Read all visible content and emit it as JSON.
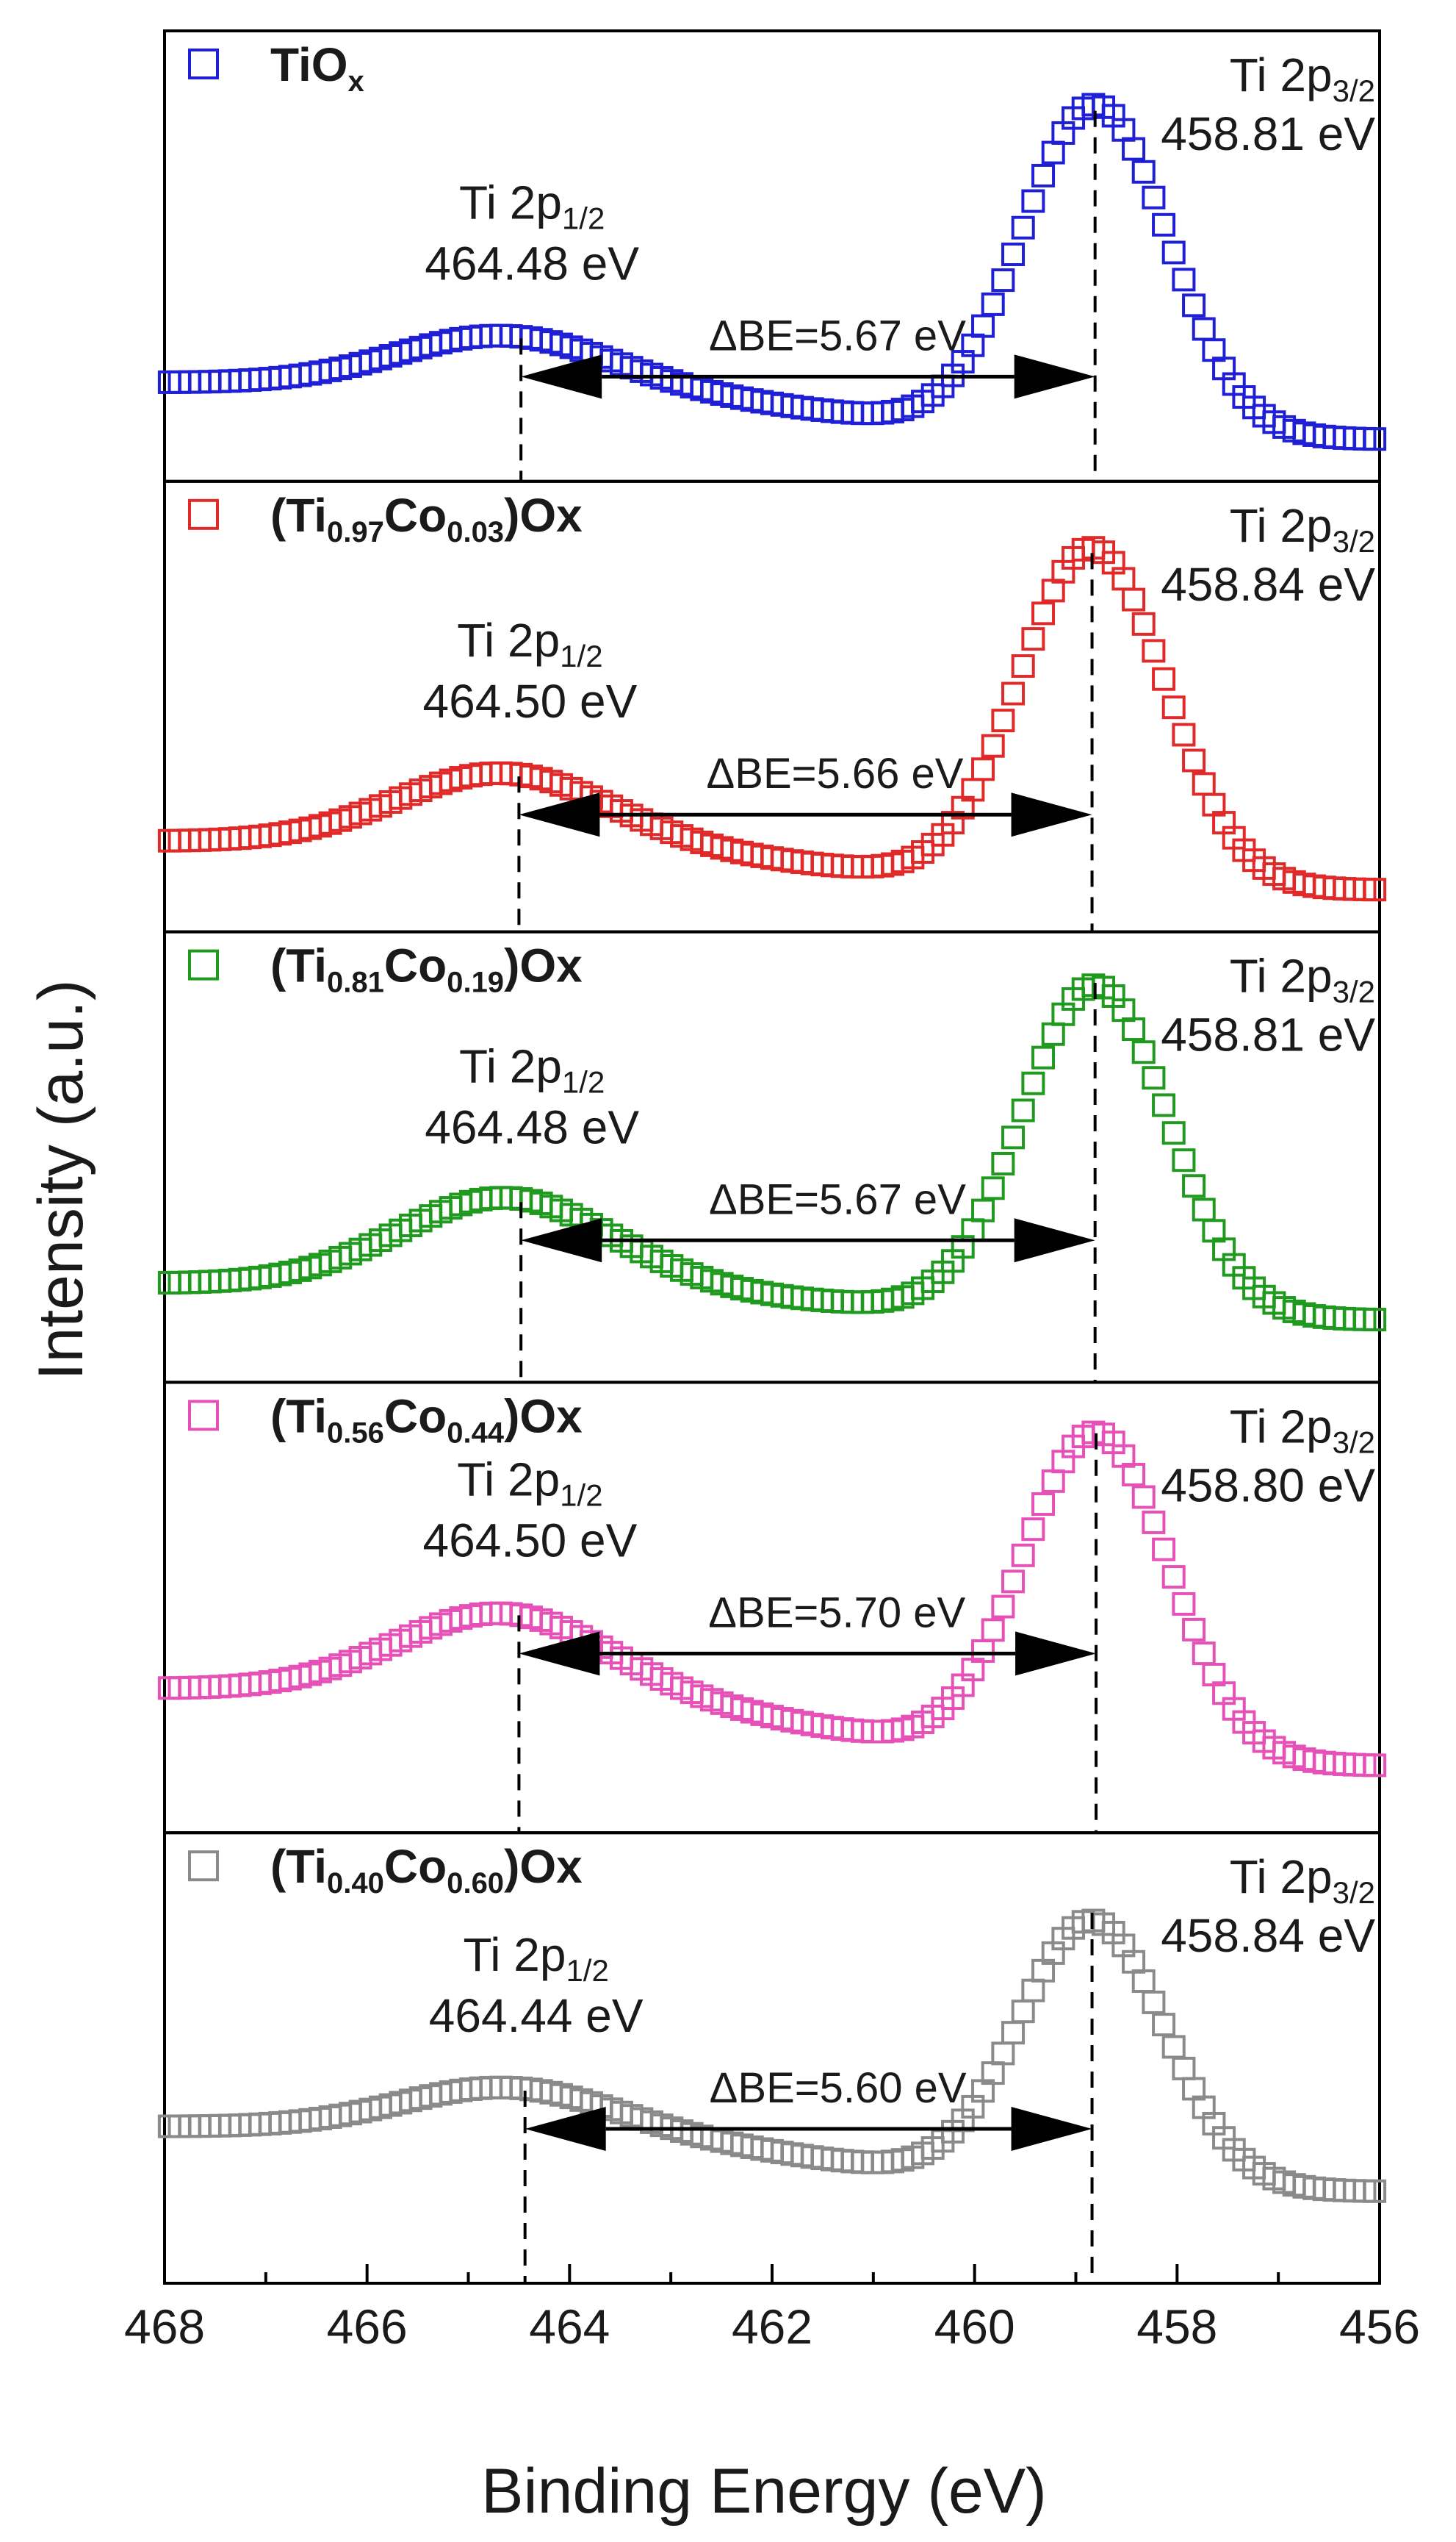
{
  "chart_data": {
    "type": "scatter",
    "title": "",
    "xlabel": "Binding Energy (eV)",
    "ylabel": "Intensity (a.u.)",
    "xlim": [
      468,
      456
    ],
    "x_reversed": true,
    "x_ticks": [
      468,
      466,
      464,
      462,
      460,
      458,
      456
    ],
    "grid": false,
    "marker": "open-square",
    "panels": [
      {
        "name": "TiOx",
        "legend_main": "TiO",
        "legend_sub": "x",
        "legend_tail": "",
        "color": "#1f1fd6",
        "baseline_left": 0.19,
        "baseline_right": 0.05,
        "p1_amp": 0.31,
        "p3_amp": 0.86,
        "p1_label": "Ti 2p",
        "p1_sub": "1/2",
        "p1_value": "464.48 eV",
        "p1_pos": 464.48,
        "p3_label": "Ti 2p",
        "p3_sub": "3/2",
        "p3_value": "458.81 eV",
        "p3_pos": 458.81,
        "delta_label": "ΔBE=5.67 eV"
      },
      {
        "name": "(Ti0.97Co0.03)Ox",
        "legend_main": "(Ti",
        "legend_sub": "0.97",
        "legend_main2": "Co",
        "legend_sub2": "0.03",
        "legend_tail": ")Ox",
        "color": "#e02a2a",
        "baseline_left": 0.17,
        "baseline_right": 0.05,
        "p1_amp": 0.34,
        "p3_amp": 0.88,
        "p1_label": "Ti 2p",
        "p1_sub": "1/2",
        "p1_value": "464.50 eV",
        "p1_pos": 464.5,
        "p3_label": "Ti 2p",
        "p3_sub": "3/2",
        "p3_value": "458.84 eV",
        "p3_pos": 458.84,
        "delta_label": "ΔBE=5.66 eV"
      },
      {
        "name": "(Ti0.81Co0.19)Ox",
        "legend_main": "(Ti",
        "legend_sub": "0.81",
        "legend_main2": "Co",
        "legend_sub2": "0.19",
        "legend_tail": ")Ox",
        "color": "#1f9a1f",
        "baseline_left": 0.19,
        "baseline_right": 0.1,
        "p1_amp": 0.4,
        "p3_amp": 0.93,
        "p1_label": "Ti 2p",
        "p1_sub": "1/2",
        "p1_value": "464.48 eV",
        "p1_pos": 464.48,
        "p3_label": "Ti 2p",
        "p3_sub": "3/2",
        "p3_value": "458.81 eV",
        "p3_pos": 458.81,
        "delta_label": "ΔBE=5.67 eV"
      },
      {
        "name": "(Ti0.56Co0.44)Ox",
        "legend_main": "(Ti",
        "legend_sub": "0.56",
        "legend_main2": "Co",
        "legend_sub2": "0.44",
        "legend_tail": ")Ox",
        "color": "#e651b8",
        "baseline_left": 0.3,
        "baseline_right": 0.11,
        "p1_amp": 0.49,
        "p3_amp": 0.93,
        "p1_label": "Ti 2p",
        "p1_sub": "1/2",
        "p1_value": "464.50 eV",
        "p1_pos": 464.5,
        "p3_label": "Ti 2p",
        "p3_sub": "3/2",
        "p3_value": "458.80 eV",
        "p3_pos": 458.8,
        "delta_label": "ΔBE=5.70 eV"
      },
      {
        "name": "(Ti0.40Co0.60)Ox",
        "legend_main": "(Ti",
        "legend_sub": "0.40",
        "legend_main2": "Co",
        "legend_sub2": "0.60",
        "legend_tail": ")Ox",
        "color": "#8a8a8a",
        "baseline_left": 0.33,
        "baseline_right": 0.17,
        "p1_amp": 0.43,
        "p3_amp": 0.86,
        "p1_label": "Ti 2p",
        "p1_sub": "1/2",
        "p1_value": "464.44 eV",
        "p1_pos": 464.44,
        "p3_label": "Ti 2p",
        "p3_sub": "3/2",
        "p3_value": "458.84 eV",
        "p3_pos": 458.84,
        "delta_label": "ΔBE=5.60 eV"
      }
    ]
  }
}
